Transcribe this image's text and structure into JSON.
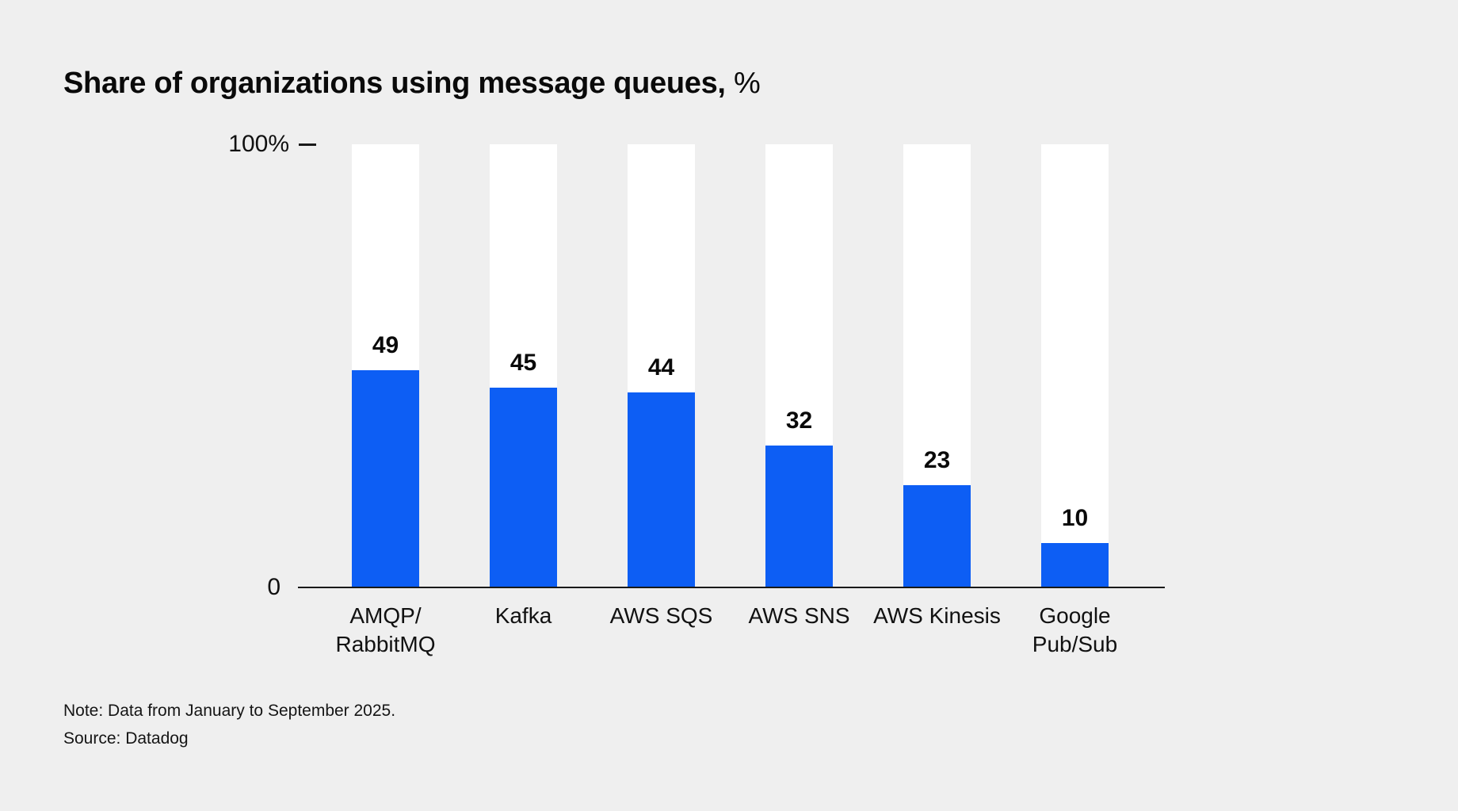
{
  "chart": {
    "title_bold": "Share of organizations using message queues,",
    "title_unit": "%",
    "y_max_label": "100%",
    "y_min_label": "0"
  },
  "chart_data": {
    "type": "bar",
    "title": "Share of organizations using message queues, %",
    "categories": [
      "AMQP/\nRabbitMQ",
      "Kafka",
      "AWS SQS",
      "AWS SNS",
      "AWS Kinesis",
      "Google\nPub/Sub"
    ],
    "values": [
      49,
      45,
      44,
      32,
      23,
      10
    ],
    "xlabel": "",
    "ylabel": "",
    "ylim": [
      0,
      100
    ],
    "grid": false,
    "legend": false,
    "bar_color": "#0d5ef4",
    "track_color": "#ffffff",
    "background_color": "#efefef"
  },
  "notes": {
    "note": "Note: Data from January to September 2025.",
    "source": "Source: Datadog"
  }
}
